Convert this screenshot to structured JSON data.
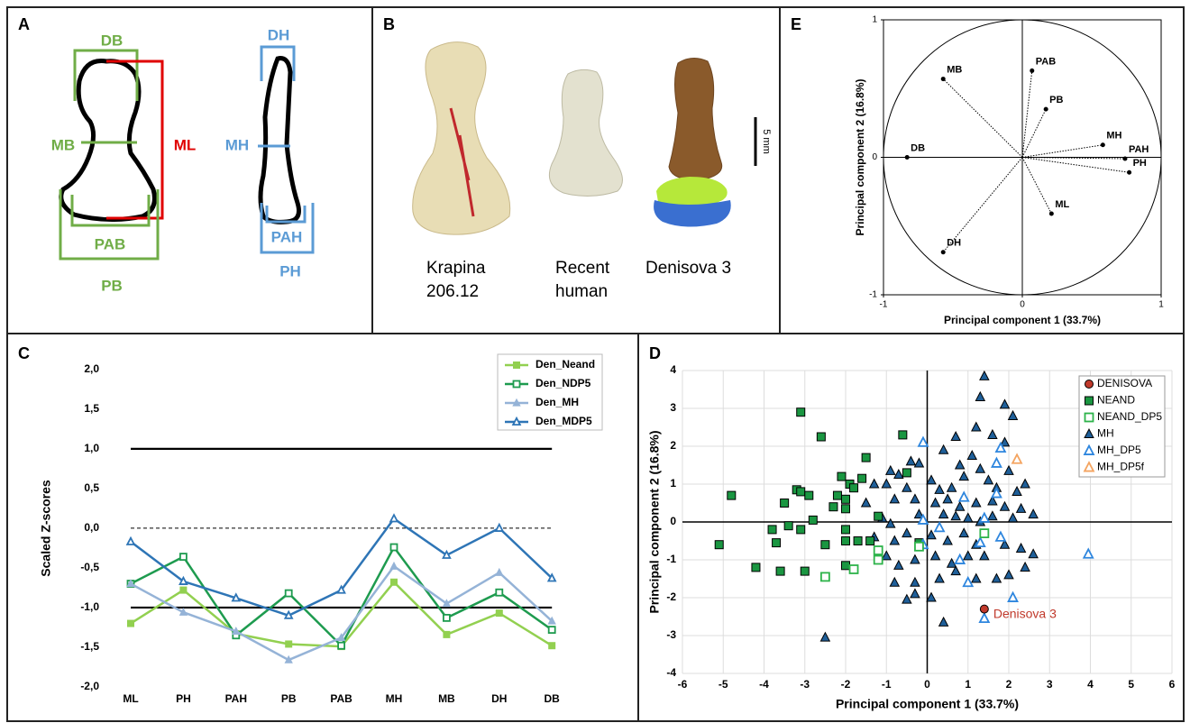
{
  "figure": {
    "panel_a": {
      "letter": "A",
      "labels": {
        "db": "DB",
        "mb": "MB",
        "ml": "ML",
        "pab": "PAB",
        "pb": "PB",
        "dh": "DH",
        "mh": "MH",
        "pah": "PAH",
        "ph": "PH"
      }
    },
    "panel_b": {
      "letter": "B",
      "specimens": [
        [
          "Krapina",
          "206.12"
        ],
        [
          "Recent",
          "human"
        ],
        [
          "Denisova 3"
        ]
      ],
      "scale": "5 mm"
    }
  },
  "chart_data": [
    {
      "type": "line",
      "letter": "C",
      "y_label": "Scaled Z-scores",
      "categories": [
        "ML",
        "PH",
        "PAH",
        "PB",
        "PAB",
        "MH",
        "MB",
        "DH",
        "DB"
      ],
      "ylim": [
        -2,
        2.1
      ],
      "yticks": [
        {
          "value": -2,
          "label": "-2,0"
        },
        {
          "value": -1.5,
          "label": "-1,5"
        },
        {
          "value": -1,
          "label": "-1,0"
        },
        {
          "value": -0.5,
          "label": "-0,5"
        },
        {
          "value": 0,
          "label": "0,0"
        },
        {
          "value": 0.5,
          "label": "0,5"
        },
        {
          "value": 1,
          "label": "1,0"
        },
        {
          "value": 1.5,
          "label": "1,5"
        },
        {
          "value": 2,
          "label": "2,0"
        }
      ],
      "ref_lines": [
        {
          "value": 1,
          "style": "solid"
        },
        {
          "value": 0,
          "style": "dashed"
        },
        {
          "value": -1,
          "style": "solid"
        }
      ],
      "series": [
        {
          "name": "Den_Neand",
          "color": "#92d050",
          "marker": "square",
          "filled": true,
          "values": [
            -1.2,
            -0.78,
            -1.33,
            -1.46,
            -1.49,
            -0.68,
            -1.34,
            -1.07,
            -1.48
          ]
        },
        {
          "name": "Den_NDP5",
          "color": "#1e9b4f",
          "marker": "square",
          "filled": false,
          "values": [
            -0.7,
            -0.36,
            -1.35,
            -0.82,
            -1.48,
            -0.24,
            -1.13,
            -0.81,
            -1.28
          ]
        },
        {
          "name": "Den_MH",
          "color": "#95b3d7",
          "marker": "triangle",
          "filled": true,
          "values": [
            -0.7,
            -1.06,
            -1.3,
            -1.66,
            -1.38,
            -0.48,
            -0.95,
            -0.56,
            -1.17
          ]
        },
        {
          "name": "Den_MDP5",
          "color": "#2e75b6",
          "marker": "triangle",
          "filled": false,
          "values": [
            -0.17,
            -0.67,
            -0.88,
            -1.1,
            -0.78,
            0.12,
            -0.34,
            0.0,
            -0.63
          ]
        }
      ]
    },
    {
      "type": "scatter",
      "letter": "D",
      "x_label": "Principal component 1 (33.7%)",
      "y_label": "Principal component 2 (16.8%)",
      "xlim": [
        -6,
        6
      ],
      "ylim": [
        -4,
        4
      ],
      "xticks": [
        -6,
        -5,
        -4,
        -3,
        -2,
        -1,
        0,
        1,
        2,
        3,
        4,
        5,
        6
      ],
      "yticks": [
        -4,
        -3,
        -2,
        -1,
        0,
        1,
        2,
        3,
        4
      ],
      "grid": true,
      "annotation": "Denisova 3",
      "series": [
        {
          "name": "DENISOVA",
          "color": "#c0392b",
          "marker": "circle",
          "filled": true,
          "x": [
            1.4
          ],
          "y": [
            -2.3
          ]
        },
        {
          "name": "NEAND",
          "color": "#1a9641",
          "marker": "square",
          "filled": true,
          "x": [
            -5.1,
            -4.8,
            -4.2,
            -3.8,
            -3.7,
            -3.6,
            -3.5,
            -3.4,
            -3.2,
            -3.1,
            -3.1,
            -3.0,
            -3.1,
            -2.9,
            -2.8,
            -2.6,
            -2.5,
            -2.3,
            -2.2,
            -2.1,
            -2.0,
            -2.0,
            -2.0,
            -1.9,
            -2.0,
            -1.8,
            -1.7,
            -1.6,
            -1.5,
            -1.4,
            -1.2,
            -0.6,
            -0.5,
            -0.2,
            -2.0
          ],
          "y": [
            -0.6,
            0.7,
            -1.2,
            -0.2,
            -0.55,
            -1.3,
            0.5,
            -0.1,
            0.85,
            0.8,
            2.9,
            -1.3,
            -0.2,
            0.7,
            0.05,
            2.25,
            -0.6,
            0.4,
            0.7,
            1.2,
            -0.2,
            0.35,
            0.6,
            1.0,
            -1.15,
            0.9,
            -0.5,
            1.15,
            1.7,
            -0.5,
            0.15,
            2.3,
            1.3,
            -0.55,
            -0.5
          ]
        },
        {
          "name": "NEAND_DP5",
          "color": "#2db34a",
          "marker": "square",
          "filled": false,
          "x": [
            -2.5,
            -1.8,
            -1.2,
            -1.2,
            -0.2,
            1.4
          ],
          "y": [
            -1.45,
            -1.25,
            -1.0,
            -0.75,
            -0.65,
            -0.3
          ]
        },
        {
          "name": "MH",
          "color": "#1f5f99",
          "marker": "triangle",
          "filled": true,
          "x": [
            1.4,
            1.3,
            1.9,
            2.1,
            1.2,
            0.7,
            1.6,
            1.9,
            0.4,
            1.1,
            0.8,
            1.3,
            2.0,
            0.9,
            1.5,
            2.4,
            -0.4,
            -0.9,
            -0.7,
            -0.2,
            0.1,
            -1.0,
            -1.3,
            -0.5,
            0.3,
            0.6,
            1.7,
            2.2,
            -1.5,
            -0.8,
            -0.3,
            0.2,
            0.5,
            0.8,
            1.2,
            1.6,
            1.9,
            2.3,
            2.6,
            2.1,
            -1.1,
            -0.9,
            -0.2,
            0.4,
            0.7,
            1.0,
            1.3,
            1.6,
            -1.3,
            -0.8,
            -0.5,
            0.1,
            0.5,
            0.9,
            1.2,
            1.9,
            2.3,
            2.6,
            -1.0,
            -0.7,
            -0.3,
            0.2,
            0.6,
            1.0,
            1.4,
            2.4,
            2.0,
            -0.8,
            -0.3,
            0.3,
            0.7,
            1.2,
            1.7,
            -0.5,
            0.1,
            0.4,
            -2.5,
            -0.3
          ],
          "y": [
            3.85,
            3.3,
            3.1,
            2.8,
            2.5,
            2.25,
            2.3,
            2.1,
            1.9,
            1.75,
            1.5,
            1.4,
            1.35,
            1.2,
            1.1,
            1.0,
            1.6,
            1.35,
            1.25,
            1.55,
            1.1,
            1.0,
            1.0,
            0.9,
            0.85,
            0.9,
            0.9,
            0.8,
            0.5,
            0.6,
            0.6,
            0.5,
            0.6,
            0.4,
            0.5,
            0.55,
            0.4,
            0.35,
            0.2,
            0.1,
            0.1,
            -0.05,
            0.2,
            0.2,
            0.15,
            0.1,
            0.0,
            0.15,
            -0.4,
            -0.5,
            -0.3,
            -0.35,
            -0.5,
            -0.3,
            -0.6,
            -0.6,
            -0.7,
            -0.85,
            -0.9,
            -1.15,
            -1.0,
            -0.9,
            -1.1,
            -0.9,
            -0.9,
            -1.2,
            -1.4,
            -1.6,
            -1.6,
            -1.5,
            -1.3,
            -1.5,
            -1.5,
            -2.05,
            -2.0,
            -2.65,
            -3.05,
            -1.9
          ]
        },
        {
          "name": "MH_DP5",
          "color": "#2e86de",
          "marker": "triangle",
          "filled": false,
          "x": [
            -0.1,
            1.8,
            2.1,
            3.95,
            0.9,
            1.7,
            1.7,
            -0.1,
            -0.1,
            1.4,
            1.8,
            1.0,
            0.8,
            1.3,
            1.4,
            0.3
          ],
          "y": [
            2.1,
            1.95,
            -2.0,
            -0.85,
            0.65,
            0.75,
            1.55,
            0.05,
            -0.6,
            0.1,
            -0.4,
            -1.6,
            -1.0,
            -0.55,
            -2.55,
            -0.15
          ]
        },
        {
          "name": "MH_DP5f",
          "color": "#f4a460",
          "marker": "triangle",
          "filled": false,
          "x": [
            2.2
          ],
          "y": [
            1.65
          ]
        }
      ]
    },
    {
      "type": "loadings",
      "letter": "E",
      "x_label": "Principal component 1 (33.7%)",
      "y_label": "Principal component 2 (16.8%)",
      "xlim": [
        -1,
        1
      ],
      "ylim": [
        -1,
        1
      ],
      "xticks": [
        -1,
        0,
        1
      ],
      "yticks": [
        -1,
        0,
        1
      ],
      "labels": [
        "MB",
        "PAB",
        "PB",
        "MH",
        "PAH",
        "PH",
        "ML",
        "DH",
        "DB"
      ],
      "x": [
        -0.57,
        0.07,
        0.17,
        0.58,
        0.74,
        0.77,
        0.21,
        -0.57,
        -0.83
      ],
      "y": [
        0.57,
        0.63,
        0.35,
        0.09,
        -0.01,
        -0.11,
        -0.41,
        -0.69,
        0.0
      ]
    }
  ]
}
